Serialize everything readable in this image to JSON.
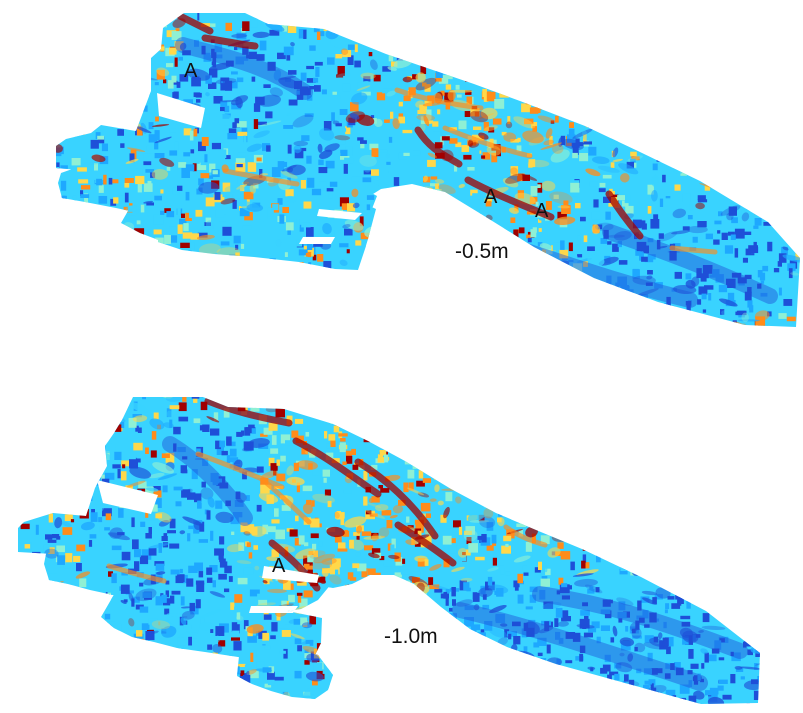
{
  "panels": [
    {
      "depth_label": "-0.5m",
      "anomaly_labels": [
        "A",
        "A",
        "A"
      ]
    },
    {
      "depth_label": "-1.0m",
      "anomaly_labels": [
        "A"
      ]
    }
  ],
  "colors": {
    "background": "#ffffff",
    "low": "#1e4fd8",
    "mid_low": "#1ea8ff",
    "mid": "#39d3ff",
    "mid_high": "#8ff0d4",
    "warm": "#ffd84a",
    "hot": "#ff8c1a",
    "highest": "#a10000"
  }
}
